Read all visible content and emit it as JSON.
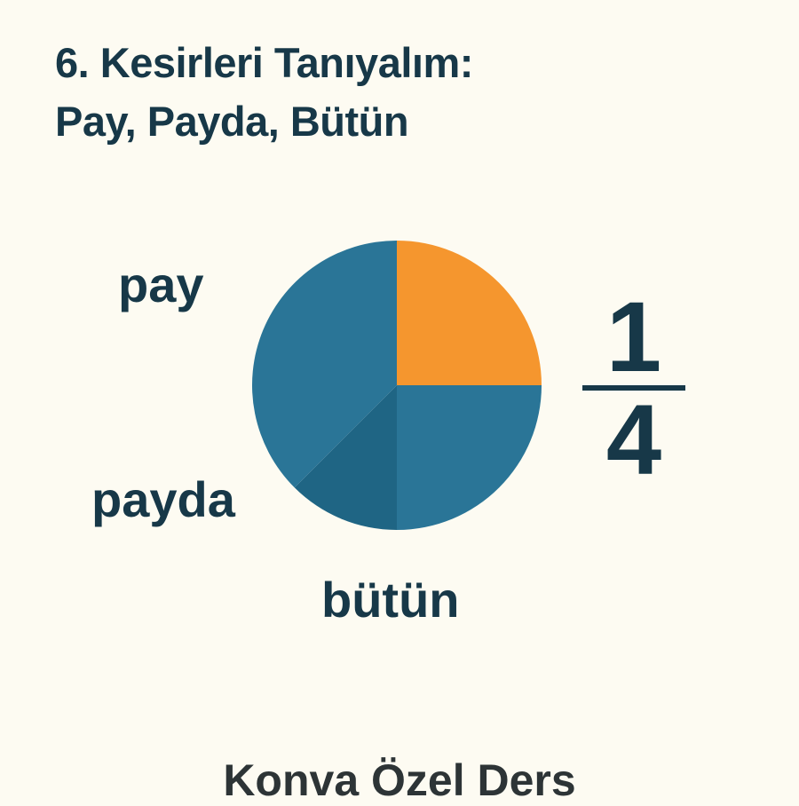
{
  "title": {
    "line1": "6. Kesirleri Tanıyalım:",
    "line2": "Pay, Payda, Bütün"
  },
  "labels": {
    "pay": "pay",
    "payda": "payda",
    "butun": "bütün"
  },
  "fraction": {
    "numerator": "1",
    "denominator": "4"
  },
  "pie": {
    "slices": [
      {
        "fraction": 0.25,
        "color": "#f5962e",
        "shaded": true
      },
      {
        "fraction": 0.25,
        "color": "#2a7597"
      },
      {
        "fraction": 0.125,
        "color": "#1f6584"
      },
      {
        "fraction": 0.375,
        "color": "#2a7597"
      }
    ]
  },
  "footer": "Konva Özel Ders"
}
